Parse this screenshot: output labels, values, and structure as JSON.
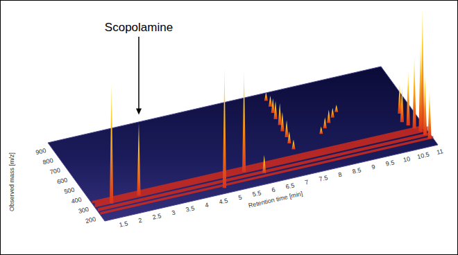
{
  "chart_data": {
    "type": "3d_spectrum",
    "xlabel": "Retention time [min]",
    "ylabel": "Observed mass [m/z]",
    "xlim": [
      1,
      11
    ],
    "xticks": [
      1.5,
      2,
      2.5,
      3,
      3.5,
      4,
      4.5,
      5,
      5.5,
      6,
      6.5,
      7,
      7.5,
      8,
      8.5,
      9,
      9.5,
      10,
      10.5,
      11
    ],
    "ylim": [
      150,
      950
    ],
    "yticks": [
      200,
      300,
      400,
      500,
      600,
      700,
      800,
      900
    ],
    "zlim": [
      0,
      100
    ],
    "annotations": [
      {
        "text": "Scopolamine",
        "rt": 2.35,
        "mz": 304
      }
    ],
    "bands": {
      "mz": [
        215,
        250,
        290,
        330
      ],
      "intensity": [
        2,
        2.5,
        4,
        2
      ]
    },
    "peaks": {
      "rt": [
        7.4,
        7.4,
        7.35,
        7.3,
        7.3,
        7.25,
        7.25,
        7.2,
        7.2,
        9.0,
        8.8,
        8.6,
        8.4,
        8.2,
        10.6,
        10.5,
        10.6,
        10.7,
        10.9,
        10.8,
        10.85,
        10.9,
        1.5,
        2.35,
        4.7,
        5.5,
        6.0
      ],
      "mz": [
        880,
        820,
        760,
        700,
        640,
        580,
        520,
        460,
        400,
        640,
        600,
        560,
        520,
        480,
        500,
        420,
        380,
        340,
        320,
        300,
        260,
        220,
        290,
        304,
        200,
        300,
        250
      ],
      "intensity": [
        7,
        9,
        12,
        15,
        18,
        16,
        14,
        10,
        8,
        6,
        8,
        11,
        9,
        6,
        25,
        30,
        45,
        60,
        100,
        75,
        50,
        40,
        100,
        60,
        100,
        85,
        15
      ]
    }
  }
}
